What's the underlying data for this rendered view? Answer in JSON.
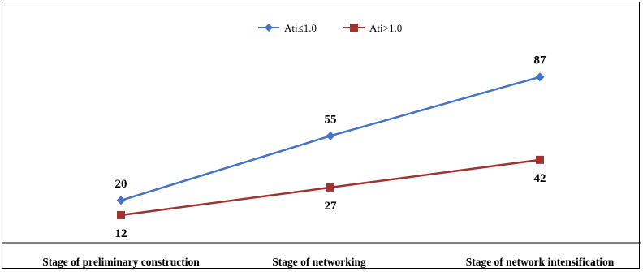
{
  "chart_data": {
    "type": "line",
    "categories": [
      "Stage of preliminary construction",
      "Stage of networking",
      "Stage of network intensification"
    ],
    "series": [
      {
        "name": "Ati≤1.0",
        "values": [
          20,
          55,
          87
        ],
        "color": "#4472C4",
        "marker": "diamond"
      },
      {
        "name": "Ati>1.0",
        "values": [
          12,
          27,
          42
        ],
        "color": "#A0332F",
        "marker": "square"
      }
    ],
    "legend_position": "top-center",
    "grid": false
  }
}
